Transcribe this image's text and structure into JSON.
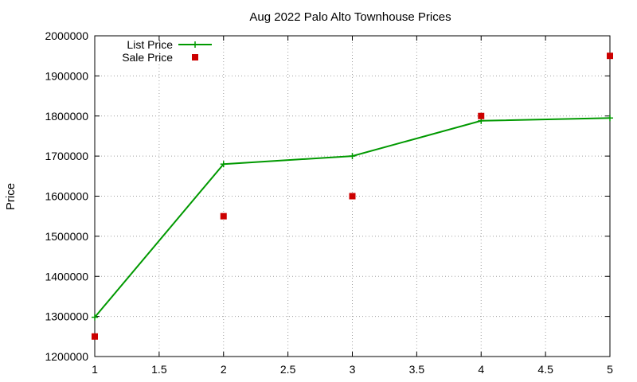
{
  "chart_data": {
    "type": "line",
    "title": "Aug 2022 Palo Alto Townhouse Prices",
    "xlabel": "",
    "ylabel": "Price",
    "xlim": [
      1,
      5
    ],
    "ylim": [
      1200000,
      2000000
    ],
    "xticks": [
      1,
      1.5,
      2,
      2.5,
      3,
      3.5,
      4,
      4.5,
      5
    ],
    "xtick_labels": [
      "1",
      "1.5",
      "2",
      "2.5",
      "3",
      "3.5",
      "4",
      "4.5",
      "5"
    ],
    "yticks": [
      1200000,
      1300000,
      1400000,
      1500000,
      1600000,
      1700000,
      1800000,
      1900000,
      2000000
    ],
    "ytick_labels": [
      "1200000",
      "1300000",
      "1400000",
      "1500000",
      "1600000",
      "1700000",
      "1800000",
      "1900000",
      "2000000"
    ],
    "grid": true,
    "legend_position": "top-left",
    "series": [
      {
        "name": "List Price",
        "style": "linespoints",
        "marker": "plus",
        "color": "#009900",
        "x": [
          1,
          2,
          3,
          4,
          5
        ],
        "y": [
          1298000,
          1680000,
          1700000,
          1788000,
          1795000
        ]
      },
      {
        "name": "Sale Price",
        "style": "points",
        "marker": "square",
        "color": "#cc0000",
        "x": [
          1,
          2,
          3,
          4,
          5
        ],
        "y": [
          1250000,
          1550000,
          1600000,
          1800000,
          1950000
        ]
      }
    ]
  }
}
